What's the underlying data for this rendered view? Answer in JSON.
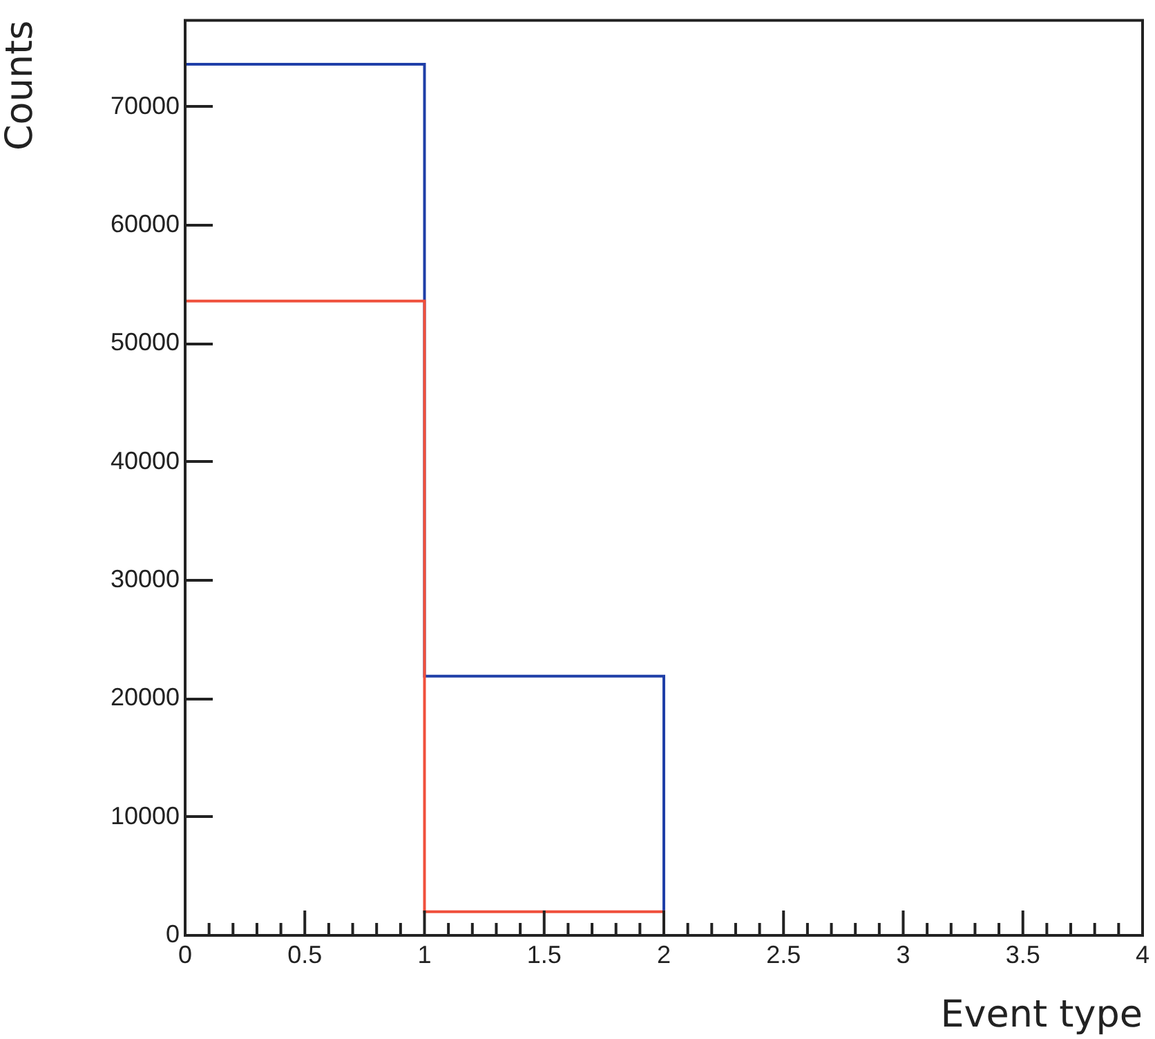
{
  "chart_data": {
    "type": "histogram",
    "xlabel": "Event type",
    "ylabel": "Counts",
    "bins": [
      0,
      1,
      2,
      3,
      4
    ],
    "series": [
      {
        "color": "#f0503c",
        "values": [
          53600,
          2000,
          0,
          0
        ]
      },
      {
        "color": "#1f3fa8",
        "values": [
          73600,
          21900,
          0,
          0
        ]
      }
    ],
    "xlim": [
      0,
      4
    ],
    "ylim": [
      0,
      77300
    ],
    "xticks": [
      0,
      {
        "value": 0.1,
        "label": null
      },
      {
        "value": 0.2,
        "label": null
      },
      {
        "value": 0.3,
        "label": null
      },
      {
        "value": 0.4,
        "label": null
      },
      0.5,
      {
        "value": 0.6,
        "label": null
      },
      {
        "value": 0.7,
        "label": null
      },
      {
        "value": 0.8,
        "label": null
      },
      {
        "value": 0.9,
        "label": null
      },
      1,
      {
        "value": 1.1,
        "label": null
      },
      {
        "value": 1.2,
        "label": null
      },
      {
        "value": 1.3,
        "label": null
      },
      {
        "value": 1.4,
        "label": null
      },
      1.5,
      {
        "value": 1.6,
        "label": null
      },
      {
        "value": 1.7,
        "label": null
      },
      {
        "value": 1.8,
        "label": null
      },
      {
        "value": 1.9,
        "label": null
      },
      2,
      {
        "value": 2.1,
        "label": null
      },
      {
        "value": 2.2,
        "label": null
      },
      {
        "value": 2.3,
        "label": null
      },
      {
        "value": 2.4,
        "label": null
      },
      2.5,
      {
        "value": 2.6,
        "label": null
      },
      {
        "value": 2.7,
        "label": null
      },
      {
        "value": 2.8,
        "label": null
      },
      {
        "value": 2.9,
        "label": null
      },
      3,
      {
        "value": 3.1,
        "label": null
      },
      {
        "value": 3.2,
        "label": null
      },
      {
        "value": 3.3,
        "label": null
      },
      {
        "value": 3.4,
        "label": null
      },
      3.5,
      {
        "value": 3.6,
        "label": null
      },
      {
        "value": 3.7,
        "label": null
      },
      {
        "value": 3.8,
        "label": null
      },
      {
        "value": 3.9,
        "label": null
      },
      4
    ],
    "yticks": [
      0,
      10000,
      20000,
      30000,
      40000,
      50000,
      60000,
      70000
    ],
    "grid": false,
    "legend": false
  }
}
